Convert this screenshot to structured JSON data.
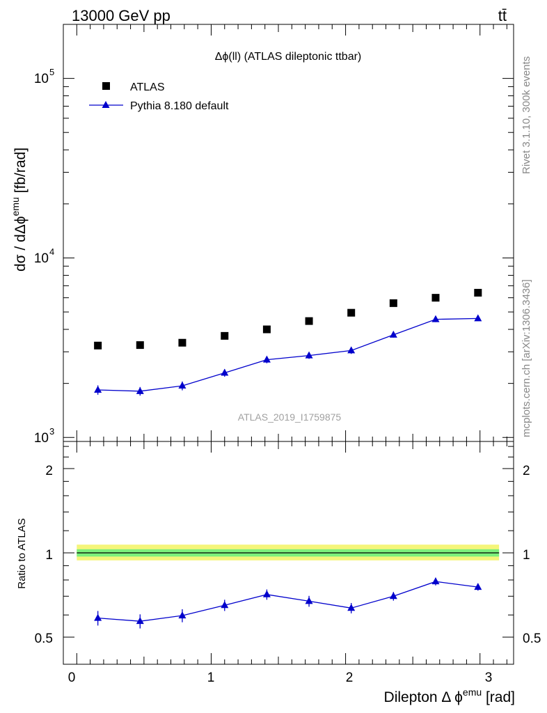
{
  "header": {
    "energy_label": "13000 GeV pp",
    "process_label": "tt̄"
  },
  "side_labels": {
    "rivet": "Rivet 3.1.10,  300k events",
    "mcplots": "mcplots.cern.ch [arXiv:1306.3436]"
  },
  "main_panel": {
    "title": "Δϕ(ll) (ATLAS dileptonic ttbar)",
    "ylabel": "dσ / dΔϕ",
    "ylabel_sup": "emu",
    "ylabel_unit": " [fb/rad]",
    "watermark": "ATLAS_2019_I1759875",
    "y_tick_labels": [
      {
        "base": "10",
        "exp": "3",
        "value": 1000
      },
      {
        "base": "10",
        "exp": "4",
        "value": 10000
      },
      {
        "base": "10",
        "exp": "5",
        "value": 100000
      }
    ]
  },
  "ratio_panel": {
    "ylabel": "Ratio to ATLAS",
    "y_tick_labels": [
      "0.5",
      "1",
      "2"
    ]
  },
  "x_axis": {
    "label": "Dilepton Δ ϕ",
    "label_sup": "emu",
    "label_unit": " [rad]",
    "tick_labels": [
      "0",
      "1",
      "2",
      "3"
    ]
  },
  "legend": {
    "entries": [
      {
        "label": "ATLAS",
        "marker": "square",
        "color": "#000000"
      },
      {
        "label": "Pythia 8.180 default",
        "marker": "triangle",
        "color": "#0000cc"
      }
    ]
  },
  "chart_data": [
    {
      "type": "scatter",
      "panel": "main",
      "y_scale": "log",
      "xlim": [
        -0.1,
        3.25
      ],
      "ylim": [
        950,
        200000
      ],
      "x": [
        0.157,
        0.471,
        0.785,
        1.1,
        1.414,
        1.728,
        2.042,
        2.356,
        2.67,
        2.985
      ],
      "x_edges": [
        0.0,
        0.314,
        0.628,
        0.942,
        1.257,
        1.571,
        1.885,
        2.199,
        2.513,
        2.827,
        3.142
      ],
      "series": [
        {
          "name": "ATLAS",
          "marker": "square",
          "color": "#000000",
          "values": [
            3250,
            3270,
            3370,
            3680,
            4000,
            4450,
            4950,
            5600,
            6000,
            6400
          ]
        },
        {
          "name": "Pythia 8.180 default",
          "marker": "triangle",
          "color": "#0000cc",
          "line": true,
          "values": [
            1840,
            1810,
            1940,
            2290,
            2710,
            2860,
            3050,
            3730,
            4550,
            4600
          ],
          "errors": [
            110,
            100,
            110,
            110,
            120,
            120,
            130,
            130,
            160,
            150
          ]
        }
      ]
    },
    {
      "type": "line",
      "panel": "ratio",
      "y_scale": "log",
      "xlim": [
        -0.1,
        3.25
      ],
      "ylim": [
        0.4,
        2.5
      ],
      "x": [
        0.157,
        0.471,
        0.785,
        1.1,
        1.414,
        1.728,
        2.042,
        2.356,
        2.67,
        2.985
      ],
      "reference": 1.0,
      "band_inner": [
        0.97,
        1.03
      ],
      "band_outer": [
        0.94,
        1.07
      ],
      "band_colors": {
        "inner": "#7cf07c",
        "outer": "#f5f57a"
      },
      "series": [
        {
          "name": "Pythia 8.180 default",
          "marker": "triangle",
          "color": "#0000cc",
          "values": [
            0.585,
            0.57,
            0.597,
            0.65,
            0.71,
            0.672,
            0.635,
            0.7,
            0.79,
            0.755
          ],
          "errors": [
            0.035,
            0.033,
            0.032,
            0.03,
            0.03,
            0.03,
            0.027,
            0.025,
            0.025,
            0.022
          ]
        }
      ]
    }
  ]
}
